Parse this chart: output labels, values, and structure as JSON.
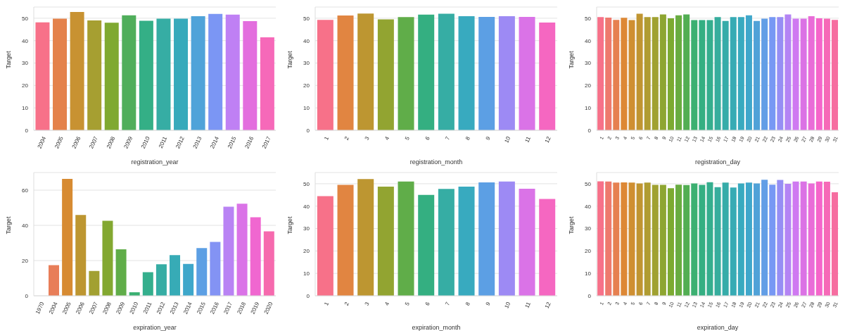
{
  "chart_data": [
    {
      "type": "bar",
      "xlabel": "registration_year",
      "ylabel": "Target",
      "categories": [
        "2004",
        "2005",
        "2006",
        "2007",
        "2008",
        "2009",
        "2010",
        "2011",
        "2012",
        "2013",
        "2014",
        "2015",
        "2016",
        "2017"
      ],
      "values": [
        48.2,
        49.8,
        52.8,
        49,
        48,
        51.3,
        48.9,
        49.8,
        49.8,
        50.9,
        51.9,
        51.6,
        48.7,
        41.5
      ],
      "colors": [
        "#f77189",
        "#e4824b",
        "#c89232",
        "#a69f31",
        "#7fa931",
        "#50ae5b",
        "#34af86",
        "#36ada4",
        "#37aabb",
        "#4fa3d9",
        "#7b96f4",
        "#bf80f4",
        "#e36ede",
        "#f669b9"
      ],
      "ylim": [
        0,
        55
      ],
      "yticks": [
        0,
        10,
        20,
        30,
        40,
        50
      ],
      "grid": "y"
    },
    {
      "type": "bar",
      "xlabel": "registration_month",
      "ylabel": "Target",
      "categories": [
        "1",
        "2",
        "3",
        "4",
        "5",
        "6",
        "7",
        "8",
        "9",
        "10",
        "11",
        "12"
      ],
      "values": [
        49.3,
        51.2,
        52.1,
        49.5,
        50.5,
        51.6,
        52,
        50.9,
        50.6,
        50.9,
        50.6,
        48.1
      ],
      "colors": [
        "#f77189",
        "#e18541",
        "#bd9631",
        "#92a431",
        "#60ad49",
        "#34af81",
        "#36ada4",
        "#38aabf",
        "#5c9fe4",
        "#9d8af4",
        "#da73e7",
        "#f567c1"
      ],
      "ylim": [
        0,
        55
      ],
      "yticks": [
        0,
        10,
        20,
        30,
        40,
        50
      ],
      "grid": "y"
    },
    {
      "type": "bar",
      "xlabel": "registration_day",
      "ylabel": "Target",
      "categories": [
        "1",
        "2",
        "3",
        "4",
        "5",
        "6",
        "7",
        "8",
        "9",
        "10",
        "11",
        "12",
        "13",
        "14",
        "15",
        "16",
        "17",
        "18",
        "19",
        "20",
        "21",
        "22",
        "23",
        "24",
        "25",
        "26",
        "27",
        "28",
        "29",
        "30",
        "31"
      ],
      "values": [
        50.5,
        50.3,
        49.3,
        50.2,
        49.2,
        52,
        50.5,
        50.5,
        51.7,
        50,
        51.3,
        51.7,
        49.2,
        49.2,
        49.2,
        50.5,
        48.8,
        50.5,
        50.5,
        51.3,
        48.8,
        49.8,
        50.5,
        50.5,
        51.7,
        49.8,
        49.8,
        50.9,
        50,
        49.8,
        49.3
      ],
      "colors": [
        "#f77189",
        "#ee796d",
        "#e68050",
        "#dd8835",
        "#cf8f32",
        "#c09531",
        "#b09c31",
        "#a0a131",
        "#8ea531",
        "#7caa31",
        "#68ac41",
        "#52ae53",
        "#3cb071",
        "#34af82",
        "#35ae8e",
        "#36ad9d",
        "#36aca9",
        "#37abb4",
        "#38aabf",
        "#3fa7cb",
        "#50a2d8",
        "#629ee6",
        "#7798f4",
        "#968ef4",
        "#b484f4",
        "#cf79f1",
        "#db72e5",
        "#e96cd8",
        "#f565ca",
        "#f669b7",
        "#f66da0"
      ],
      "ylim": [
        0,
        55
      ],
      "yticks": [
        0,
        10,
        20,
        30,
        40,
        50
      ],
      "grid": "y"
    },
    {
      "type": "bar",
      "xlabel": "expiration_year",
      "ylabel": "Target",
      "categories": [
        "1970",
        "2004",
        "2005",
        "2006",
        "2007",
        "2008",
        "2009",
        "2010",
        "2011",
        "2012",
        "2013",
        "2014",
        "2015",
        "2016",
        "2017",
        "2018",
        "2019",
        "2020"
      ],
      "values": [
        0,
        17.4,
        66.4,
        45.9,
        14.1,
        42.6,
        26.4,
        2,
        13.4,
        17.9,
        23.1,
        18.1,
        27.1,
        30.6,
        50.6,
        52.3,
        44.6,
        36.6
      ],
      "colors": [
        "#f77189",
        "#e87e59",
        "#d78b32",
        "#bd9631",
        "#a2a031",
        "#83a831",
        "#60ad49",
        "#3bb072",
        "#34af8d",
        "#36ada4",
        "#37abb6",
        "#3ea7ca",
        "#5c9fe4",
        "#8393f4",
        "#b983f4",
        "#da73e7",
        "#f067d0",
        "#f66aae"
      ],
      "ylim": [
        0,
        70
      ],
      "yticks": [
        0,
        20,
        40,
        60
      ],
      "grid": "y"
    },
    {
      "type": "bar",
      "xlabel": "expiration_month",
      "ylabel": "Target",
      "categories": [
        "1",
        "2",
        "3",
        "4",
        "5",
        "6",
        "7",
        "8",
        "9",
        "10",
        "11",
        "12"
      ],
      "values": [
        44.5,
        49.5,
        52.1,
        48.7,
        51,
        45,
        47.7,
        48.7,
        50.6,
        51,
        47.8,
        43.2
      ],
      "colors": [
        "#f77189",
        "#e18541",
        "#bd9631",
        "#92a431",
        "#60ad49",
        "#34af81",
        "#36ada4",
        "#38aabf",
        "#5c9fe4",
        "#9d8af4",
        "#da73e7",
        "#f567c1"
      ],
      "ylim": [
        0,
        55
      ],
      "yticks": [
        0,
        10,
        20,
        30,
        40,
        50
      ],
      "grid": "y"
    },
    {
      "type": "bar",
      "xlabel": "expiration_day",
      "ylabel": "Target",
      "categories": [
        "1",
        "2",
        "3",
        "4",
        "5",
        "6",
        "7",
        "8",
        "9",
        "10",
        "11",
        "12",
        "13",
        "14",
        "15",
        "16",
        "17",
        "18",
        "19",
        "20",
        "21",
        "22",
        "23",
        "24",
        "25",
        "26",
        "27",
        "28",
        "29",
        "30",
        "31"
      ],
      "values": [
        51.1,
        51,
        50.5,
        50.6,
        50.5,
        50.1,
        50.5,
        49.5,
        49.5,
        48,
        49.6,
        49.4,
        50.1,
        49.5,
        50.7,
        48.5,
        50.5,
        48.3,
        50.1,
        50.5,
        50.1,
        51.8,
        49.6,
        51.7,
        50,
        51,
        51,
        50.1,
        51,
        50.9,
        46.2
      ],
      "colors": [
        "#f77189",
        "#ee796d",
        "#e68050",
        "#dd8835",
        "#cf8f32",
        "#c09531",
        "#b09c31",
        "#a0a131",
        "#8ea531",
        "#7caa31",
        "#68ac41",
        "#52ae53",
        "#3cb071",
        "#34af82",
        "#35ae8e",
        "#36ad9d",
        "#36aca9",
        "#37abb4",
        "#38aabf",
        "#3fa7cb",
        "#50a2d8",
        "#629ee6",
        "#7798f4",
        "#968ef4",
        "#b484f4",
        "#cf79f1",
        "#db72e5",
        "#e96cd8",
        "#f565ca",
        "#f669b7",
        "#f66da0"
      ],
      "ylim": [
        0,
        55
      ],
      "yticks": [
        0,
        10,
        20,
        30,
        40,
        50
      ],
      "grid": "y"
    }
  ]
}
